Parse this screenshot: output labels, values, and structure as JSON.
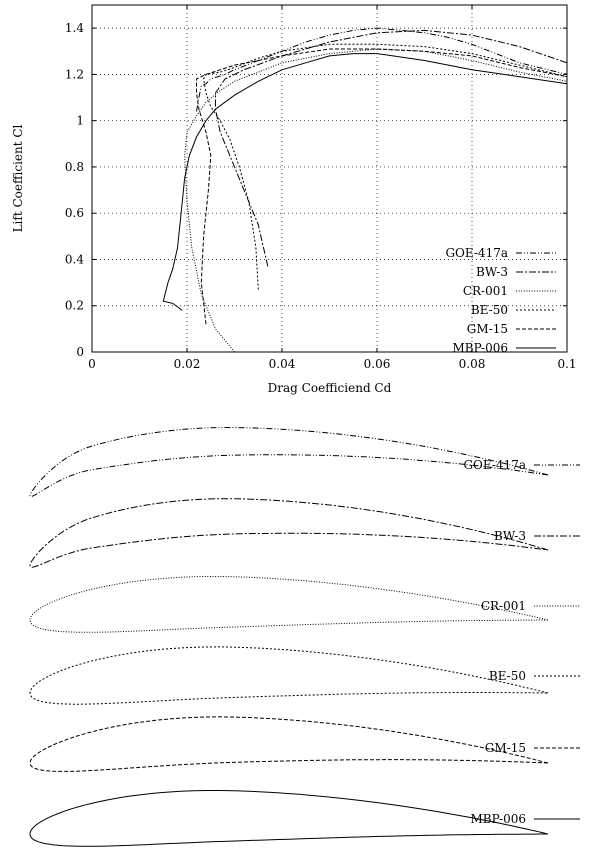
{
  "chart_data": [
    {
      "type": "line",
      "title": "",
      "xlabel": "Drag Coefficiend Cd",
      "ylabel": "Lift Coefficient Cl",
      "xlim": [
        0,
        0.1
      ],
      "ylim": [
        0,
        1.5
      ],
      "xticks": [
        "0",
        "0.02",
        "0.04",
        "0.06",
        "0.08",
        "0.1"
      ],
      "yticks": [
        "0",
        "0.2",
        "0.4",
        "0.6",
        "0.8",
        "1",
        "1.2",
        "1.4"
      ],
      "grid": true,
      "legend_position": "bottom-right",
      "series": [
        {
          "name": "GOE-417a",
          "dash": "dash-dot-dot",
          "x": [
            0.022,
            0.0225,
            0.023,
            0.024,
            0.025,
            0.028,
            0.03,
            0.035,
            0.04,
            0.045,
            0.05,
            0.055,
            0.06,
            0.065,
            0.07,
            0.075,
            0.08,
            0.09,
            0.1
          ],
          "y": [
            1.04,
            1.1,
            1.15,
            1.16,
            1.18,
            1.2,
            1.22,
            1.26,
            1.3,
            1.34,
            1.37,
            1.39,
            1.4,
            1.39,
            1.38,
            1.36,
            1.33,
            1.25,
            1.2
          ]
        },
        {
          "name": "BW-3",
          "dash": "dash-dot",
          "x": [
            0.037,
            0.035,
            0.032,
            0.029,
            0.027,
            0.026,
            0.026,
            0.028,
            0.032,
            0.04,
            0.05,
            0.06,
            0.07,
            0.08,
            0.09,
            0.1
          ],
          "y": [
            0.37,
            0.55,
            0.7,
            0.85,
            0.95,
            1.05,
            1.12,
            1.18,
            1.22,
            1.28,
            1.34,
            1.38,
            1.39,
            1.37,
            1.32,
            1.25
          ]
        },
        {
          "name": "CR-001",
          "dash": "dotted",
          "x": [
            0.03,
            0.026,
            0.023,
            0.021,
            0.02,
            0.0195,
            0.02,
            0.022,
            0.024,
            0.027,
            0.03,
            0.035,
            0.04,
            0.05,
            0.06,
            0.07,
            0.08,
            0.09,
            0.1
          ],
          "y": [
            0.0,
            0.1,
            0.25,
            0.45,
            0.65,
            0.85,
            0.95,
            1.02,
            1.08,
            1.13,
            1.17,
            1.21,
            1.25,
            1.29,
            1.31,
            1.3,
            1.26,
            1.21,
            1.17
          ]
        },
        {
          "name": "BE-50",
          "dash": "short-dash",
          "x": [
            0.035,
            0.0345,
            0.033,
            0.031,
            0.029,
            0.027,
            0.025,
            0.024,
            0.0235,
            0.024,
            0.027,
            0.03,
            0.035,
            0.04,
            0.05,
            0.06,
            0.07,
            0.08,
            0.09,
            0.1
          ],
          "y": [
            0.27,
            0.45,
            0.65,
            0.8,
            0.92,
            1.0,
            1.06,
            1.12,
            1.18,
            1.2,
            1.21,
            1.23,
            1.27,
            1.3,
            1.33,
            1.33,
            1.32,
            1.29,
            1.24,
            1.19
          ]
        },
        {
          "name": "GM-15",
          "dash": "dashed",
          "x": [
            0.024,
            0.023,
            0.0235,
            0.0245,
            0.025,
            0.024,
            0.0225,
            0.022,
            0.022,
            0.024,
            0.027,
            0.03,
            0.035,
            0.04,
            0.05,
            0.06,
            0.07,
            0.08,
            0.09,
            0.1
          ],
          "y": [
            0.12,
            0.3,
            0.5,
            0.7,
            0.85,
            0.95,
            1.05,
            1.12,
            1.18,
            1.2,
            1.22,
            1.24,
            1.26,
            1.28,
            1.31,
            1.31,
            1.3,
            1.28,
            1.23,
            1.19
          ]
        },
        {
          "name": "MBP-006",
          "dash": "solid",
          "x": [
            0.019,
            0.017,
            0.015,
            0.016,
            0.017,
            0.018,
            0.0185,
            0.019,
            0.0195,
            0.0205,
            0.022,
            0.024,
            0.026,
            0.03,
            0.035,
            0.04,
            0.045,
            0.05,
            0.055,
            0.06,
            0.07,
            0.08,
            0.09,
            0.1
          ],
          "y": [
            0.18,
            0.21,
            0.22,
            0.3,
            0.36,
            0.45,
            0.55,
            0.65,
            0.75,
            0.85,
            0.93,
            1.0,
            1.05,
            1.11,
            1.17,
            1.22,
            1.25,
            1.28,
            1.29,
            1.29,
            1.26,
            1.22,
            1.19,
            1.16
          ]
        }
      ]
    },
    {
      "type": "diagram",
      "title": "",
      "profiles": [
        {
          "name": "GOE-417a",
          "dash": "dash-dot-dot",
          "thickness": 0.055,
          "camber": 0.065,
          "nose_droop": 0.04
        },
        {
          "name": "BW-3",
          "dash": "dash-dot",
          "thickness": 0.07,
          "camber": 0.065,
          "nose_droop": 0.03
        },
        {
          "name": "CR-001",
          "dash": "dotted",
          "thickness": 0.1,
          "camber": 0.035,
          "nose_droop": 0.0
        },
        {
          "name": "BE-50",
          "dash": "short-dash",
          "thickness": 0.1,
          "camber": 0.04,
          "nose_droop": 0.0
        },
        {
          "name": "GM-15",
          "dash": "dashed",
          "thickness": 0.09,
          "camber": 0.045,
          "nose_droop": 0.0
        },
        {
          "name": "MBP-006",
          "dash": "solid",
          "thickness": 0.1,
          "camber": 0.035,
          "nose_droop": 0.0
        }
      ]
    }
  ]
}
